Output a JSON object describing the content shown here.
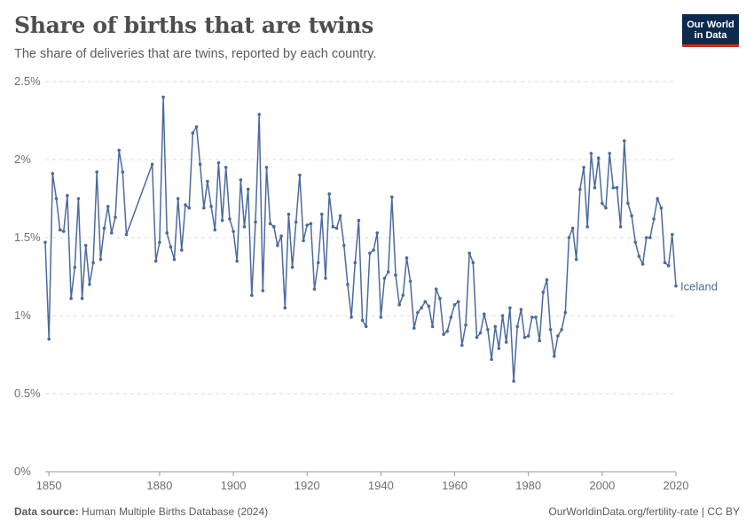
{
  "header": {
    "title": "Share of births that are twins",
    "subtitle": "The share of deliveries that are twins, reported by each country.",
    "logo_line1": "Our World",
    "logo_line2": "in Data"
  },
  "footer": {
    "source_label": "Data source:",
    "source_text": "Human Multiple Births Database (2024)",
    "right_text": "OurWorldinData.org/fertility-rate | CC BY"
  },
  "colors": {
    "series": "#4c6a9c",
    "grid": "#dddddd",
    "axis": "#999999"
  },
  "chart_data": {
    "type": "line",
    "title": "Share of births that are twins",
    "xlabel": "",
    "ylabel": "",
    "xlim": [
      1849,
      2020
    ],
    "ylim": [
      0,
      2.5
    ],
    "x_ticks": [
      1850,
      1880,
      1900,
      1920,
      1940,
      1960,
      1980,
      2000,
      2020
    ],
    "y_ticks": [
      0,
      0.5,
      1,
      1.5,
      2,
      2.5
    ],
    "y_tick_labels": [
      "0%",
      "0.5%",
      "1%",
      "1.5%",
      "2%",
      "2.5%"
    ],
    "series": [
      {
        "name": "Iceland",
        "points": [
          [
            1849,
            1.47
          ],
          [
            1850,
            0.85
          ],
          [
            1851,
            1.91
          ],
          [
            1852,
            1.75
          ],
          [
            1853,
            1.55
          ],
          [
            1854,
            1.54
          ],
          [
            1855,
            1.77
          ],
          [
            1856,
            1.11
          ],
          [
            1857,
            1.31
          ],
          [
            1858,
            1.75
          ],
          [
            1859,
            1.11
          ],
          [
            1860,
            1.45
          ],
          [
            1861,
            1.2
          ],
          [
            1862,
            1.34
          ],
          [
            1863,
            1.92
          ],
          [
            1864,
            1.36
          ],
          [
            1865,
            1.56
          ],
          [
            1866,
            1.7
          ],
          [
            1867,
            1.53
          ],
          [
            1868,
            1.63
          ],
          [
            1869,
            2.06
          ],
          [
            1870,
            1.92
          ],
          [
            1871,
            1.52
          ],
          [
            1878,
            1.97
          ],
          [
            1879,
            1.35
          ],
          [
            1880,
            1.47
          ],
          [
            1881,
            2.4
          ],
          [
            1882,
            1.53
          ],
          [
            1883,
            1.44
          ],
          [
            1884,
            1.36
          ],
          [
            1885,
            1.75
          ],
          [
            1886,
            1.42
          ],
          [
            1887,
            1.71
          ],
          [
            1888,
            1.69
          ],
          [
            1889,
            2.17
          ],
          [
            1890,
            2.21
          ],
          [
            1891,
            1.97
          ],
          [
            1892,
            1.69
          ],
          [
            1893,
            1.86
          ],
          [
            1894,
            1.7
          ],
          [
            1895,
            1.55
          ],
          [
            1896,
            1.98
          ],
          [
            1897,
            1.61
          ],
          [
            1898,
            1.95
          ],
          [
            1899,
            1.62
          ],
          [
            1900,
            1.54
          ],
          [
            1901,
            1.35
          ],
          [
            1902,
            1.87
          ],
          [
            1903,
            1.57
          ],
          [
            1904,
            1.81
          ],
          [
            1905,
            1.13
          ],
          [
            1906,
            1.6
          ],
          [
            1907,
            2.29
          ],
          [
            1908,
            1.16
          ],
          [
            1909,
            1.95
          ],
          [
            1910,
            1.59
          ],
          [
            1911,
            1.57
          ],
          [
            1912,
            1.45
          ],
          [
            1913,
            1.51
          ],
          [
            1914,
            1.05
          ],
          [
            1915,
            1.65
          ],
          [
            1916,
            1.31
          ],
          [
            1917,
            1.6
          ],
          [
            1918,
            1.9
          ],
          [
            1919,
            1.48
          ],
          [
            1920,
            1.58
          ],
          [
            1921,
            1.59
          ],
          [
            1922,
            1.17
          ],
          [
            1923,
            1.34
          ],
          [
            1924,
            1.65
          ],
          [
            1925,
            1.24
          ],
          [
            1926,
            1.78
          ],
          [
            1927,
            1.57
          ],
          [
            1928,
            1.56
          ],
          [
            1929,
            1.64
          ],
          [
            1930,
            1.45
          ],
          [
            1931,
            1.2
          ],
          [
            1932,
            0.99
          ],
          [
            1933,
            1.34
          ],
          [
            1934,
            1.61
          ],
          [
            1935,
            0.97
          ],
          [
            1936,
            0.93
          ],
          [
            1937,
            1.4
          ],
          [
            1938,
            1.42
          ],
          [
            1939,
            1.53
          ],
          [
            1940,
            0.99
          ],
          [
            1941,
            1.24
          ],
          [
            1942,
            1.28
          ],
          [
            1943,
            1.76
          ],
          [
            1944,
            1.26
          ],
          [
            1945,
            1.07
          ],
          [
            1946,
            1.13
          ],
          [
            1947,
            1.37
          ],
          [
            1948,
            1.22
          ],
          [
            1949,
            0.92
          ],
          [
            1950,
            1.02
          ],
          [
            1951,
            1.05
          ],
          [
            1952,
            1.09
          ],
          [
            1953,
            1.06
          ],
          [
            1954,
            0.93
          ],
          [
            1955,
            1.17
          ],
          [
            1956,
            1.11
          ],
          [
            1957,
            0.88
          ],
          [
            1958,
            0.9
          ],
          [
            1959,
            0.99
          ],
          [
            1960,
            1.07
          ],
          [
            1961,
            1.09
          ],
          [
            1962,
            0.81
          ],
          [
            1963,
            0.94
          ],
          [
            1964,
            1.4
          ],
          [
            1965,
            1.34
          ],
          [
            1966,
            0.86
          ],
          [
            1967,
            0.89
          ],
          [
            1968,
            1.01
          ],
          [
            1969,
            0.91
          ],
          [
            1970,
            0.72
          ],
          [
            1971,
            0.93
          ],
          [
            1972,
            0.79
          ],
          [
            1973,
            1.0
          ],
          [
            1974,
            0.83
          ],
          [
            1975,
            1.05
          ],
          [
            1976,
            0.58
          ],
          [
            1977,
            0.93
          ],
          [
            1978,
            1.04
          ],
          [
            1979,
            0.86
          ],
          [
            1980,
            0.87
          ],
          [
            1981,
            0.99
          ],
          [
            1982,
            0.99
          ],
          [
            1983,
            0.84
          ],
          [
            1984,
            1.15
          ],
          [
            1985,
            1.23
          ],
          [
            1986,
            0.91
          ],
          [
            1987,
            0.74
          ],
          [
            1988,
            0.87
          ],
          [
            1989,
            0.91
          ],
          [
            1990,
            1.02
          ],
          [
            1991,
            1.5
          ],
          [
            1992,
            1.56
          ],
          [
            1993,
            1.36
          ],
          [
            1994,
            1.81
          ],
          [
            1995,
            1.95
          ],
          [
            1996,
            1.57
          ],
          [
            1997,
            2.04
          ],
          [
            1998,
            1.82
          ],
          [
            1999,
            2.01
          ],
          [
            2000,
            1.72
          ],
          [
            2001,
            1.69
          ],
          [
            2002,
            2.04
          ],
          [
            2003,
            1.82
          ],
          [
            2004,
            1.82
          ],
          [
            2005,
            1.57
          ],
          [
            2006,
            2.12
          ],
          [
            2007,
            1.72
          ],
          [
            2008,
            1.64
          ],
          [
            2009,
            1.47
          ],
          [
            2010,
            1.38
          ],
          [
            2011,
            1.33
          ],
          [
            2012,
            1.5
          ],
          [
            2013,
            1.5
          ],
          [
            2014,
            1.62
          ],
          [
            2015,
            1.75
          ],
          [
            2016,
            1.69
          ],
          [
            2017,
            1.34
          ],
          [
            2018,
            1.32
          ],
          [
            2019,
            1.52
          ],
          [
            2020,
            1.19
          ]
        ]
      }
    ]
  }
}
